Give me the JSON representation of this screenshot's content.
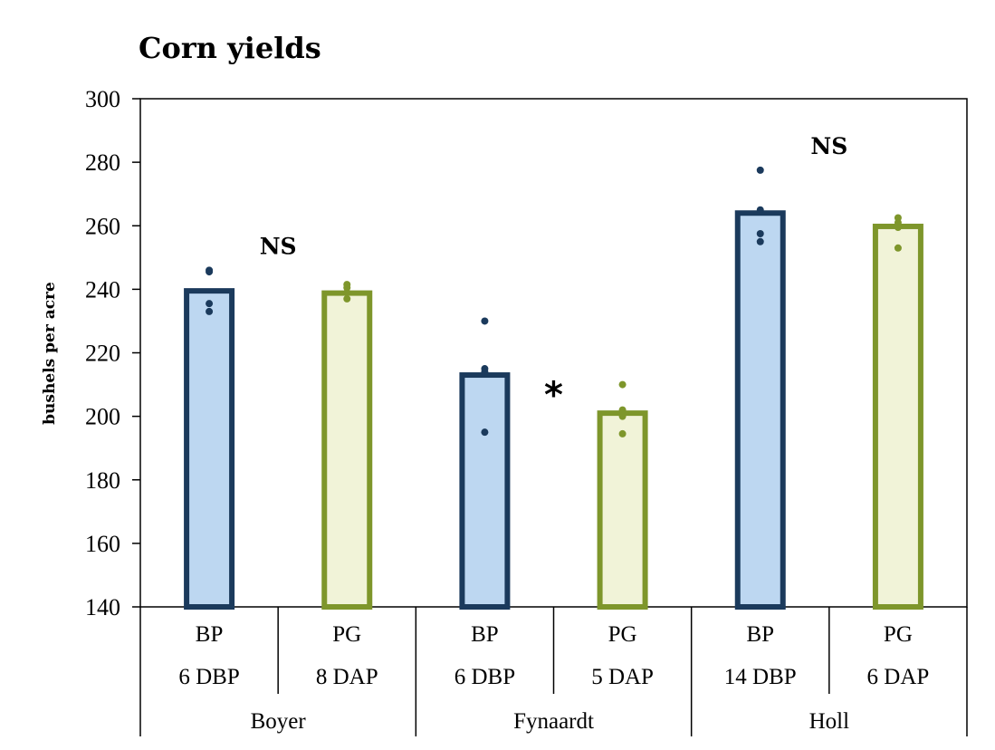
{
  "chart_data": {
    "type": "bar",
    "title": "Corn yields",
    "xlabel": "",
    "ylabel": "bushels per acre",
    "ylim": [
      140,
      300
    ],
    "yticks": [
      140,
      160,
      180,
      200,
      220,
      240,
      260,
      280,
      300
    ],
    "grid": false,
    "legend": "none",
    "groups": [
      {
        "name": "Boyer",
        "annotation": "NS",
        "bars": [
          {
            "treatment": "BP",
            "timing": "6 DBP",
            "value": 239.5,
            "points": [
              246,
              245.5,
              235.5,
              233
            ],
            "color": "#1b3a5c",
            "fill": "#bdd7f1"
          },
          {
            "treatment": "PG",
            "timing": "8 DAP",
            "value": 238.8,
            "points": [
              241.5,
              240.5,
              239,
              237
            ],
            "color": "#7e962b",
            "fill": "#f1f3d8"
          }
        ]
      },
      {
        "name": "Fynaardt",
        "annotation": "*",
        "bars": [
          {
            "treatment": "BP",
            "timing": "6 DBP",
            "value": 213,
            "points": [
              230,
              215,
              214,
              195
            ],
            "color": "#1b3a5c",
            "fill": "#bdd7f1"
          },
          {
            "treatment": "PG",
            "timing": "5 DAP",
            "value": 201,
            "points": [
              210,
              202,
              200,
              194.5
            ],
            "color": "#7e962b",
            "fill": "#f1f3d8"
          }
        ]
      },
      {
        "name": "Holl",
        "annotation": "NS",
        "bars": [
          {
            "treatment": "BP",
            "timing": "14 DBP",
            "value": 264,
            "points": [
              277.5,
              265,
              257.5,
              255
            ],
            "color": "#1b3a5c",
            "fill": "#bdd7f1"
          },
          {
            "treatment": "PG",
            "timing": "6 DAP",
            "value": 259.8,
            "points": [
              262.5,
              261,
              259.5,
              253
            ],
            "color": "#7e962b",
            "fill": "#f1f3d8"
          }
        ]
      }
    ]
  }
}
